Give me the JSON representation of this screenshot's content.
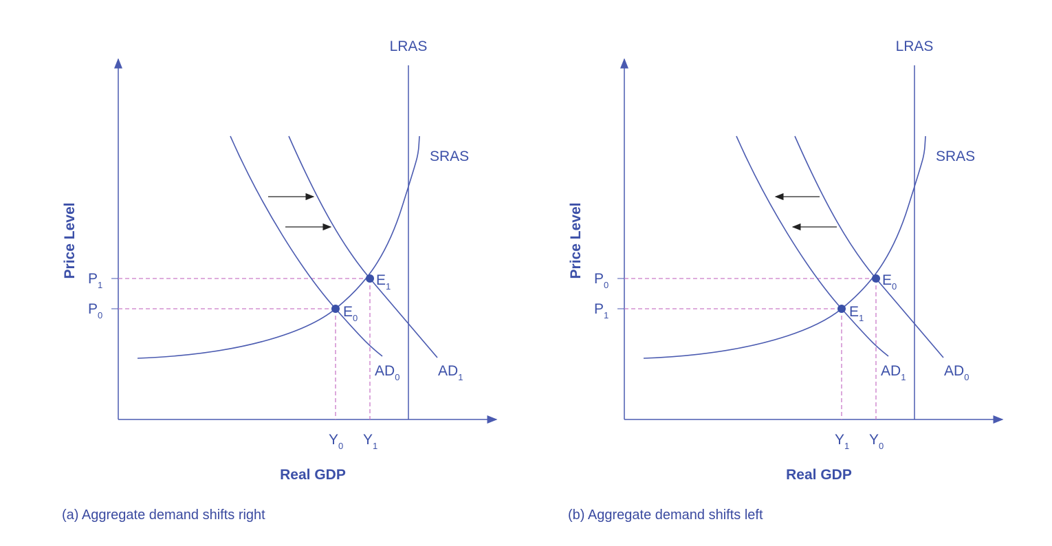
{
  "panels": [
    {
      "lras_label": "LRAS",
      "sras_label": "SRAS",
      "y_axis_label": "Price Level",
      "x_axis_label": "Real GDP",
      "caption": "(a) Aggregate demand shifts right",
      "price_labels": [
        {
          "text": "P",
          "sub": "1"
        },
        {
          "text": "P",
          "sub": "0"
        }
      ],
      "point_labels": [
        {
          "text": "E",
          "sub": "1"
        },
        {
          "text": "E",
          "sub": "0"
        }
      ],
      "ad_labels": [
        {
          "text": "AD",
          "sub": "0"
        },
        {
          "text": "AD",
          "sub": "1"
        }
      ],
      "gdp_labels": [
        {
          "text": "Y",
          "sub": "0"
        },
        {
          "text": "Y",
          "sub": "1"
        }
      ]
    },
    {
      "lras_label": "LRAS",
      "sras_label": "SRAS",
      "y_axis_label": "Price Level",
      "x_axis_label": "Real GDP",
      "caption": "(b) Aggregate demand shifts left",
      "price_labels": [
        {
          "text": "P",
          "sub": "0"
        },
        {
          "text": "P",
          "sub": "1"
        }
      ],
      "point_labels": [
        {
          "text": "E",
          "sub": "0"
        },
        {
          "text": "E",
          "sub": "1"
        }
      ],
      "ad_labels": [
        {
          "text": "AD",
          "sub": "1"
        },
        {
          "text": "AD",
          "sub": "0"
        }
      ],
      "gdp_labels": [
        {
          "text": "Y",
          "sub": "1"
        },
        {
          "text": "Y",
          "sub": "0"
        }
      ]
    }
  ]
}
